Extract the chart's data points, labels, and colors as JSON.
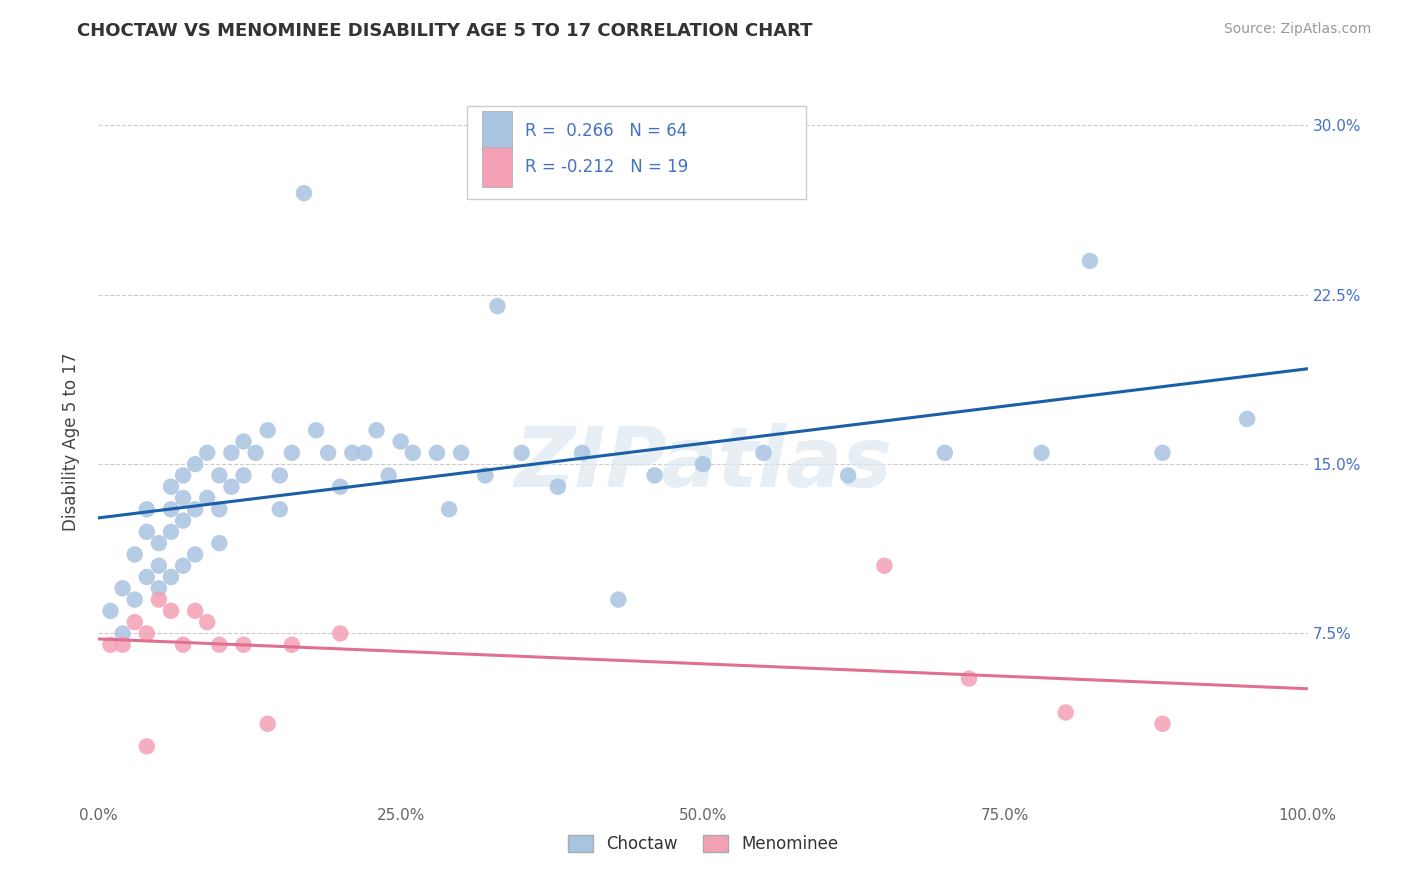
{
  "title": "CHOCTAW VS MENOMINEE DISABILITY AGE 5 TO 17 CORRELATION CHART",
  "source": "Source: ZipAtlas.com",
  "ylabel": "Disability Age 5 to 17",
  "legend_label1": "Choctaw",
  "legend_label2": "Menominee",
  "R1": 0.266,
  "N1": 64,
  "R2": -0.212,
  "N2": 19,
  "color1": "#a8c4e0",
  "color2": "#f4a0b5",
  "line_color1": "#1a5fa8",
  "line_color2": "#e07090",
  "xlim": [
    0.0,
    1.0
  ],
  "ylim": [
    0.0,
    0.32
  ],
  "xtick_positions": [
    0.0,
    0.25,
    0.5,
    0.75,
    1.0
  ],
  "xtick_labels": [
    "0.0%",
    "25.0%",
    "50.0%",
    "75.0%",
    "100.0%"
  ],
  "ytick_positions": [
    0.0,
    0.075,
    0.15,
    0.225,
    0.3
  ],
  "ytick_labels": [
    "",
    "7.5%",
    "15.0%",
    "22.5%",
    "30.0%"
  ],
  "choctaw_x": [
    0.01,
    0.02,
    0.02,
    0.03,
    0.03,
    0.04,
    0.04,
    0.04,
    0.05,
    0.05,
    0.05,
    0.06,
    0.06,
    0.06,
    0.06,
    0.07,
    0.07,
    0.07,
    0.07,
    0.08,
    0.08,
    0.08,
    0.09,
    0.09,
    0.1,
    0.1,
    0.1,
    0.11,
    0.11,
    0.12,
    0.12,
    0.13,
    0.14,
    0.15,
    0.15,
    0.16,
    0.17,
    0.18,
    0.19,
    0.2,
    0.21,
    0.22,
    0.23,
    0.24,
    0.25,
    0.26,
    0.28,
    0.29,
    0.3,
    0.32,
    0.33,
    0.35,
    0.38,
    0.4,
    0.43,
    0.46,
    0.5,
    0.55,
    0.62,
    0.7,
    0.78,
    0.82,
    0.88,
    0.95
  ],
  "choctaw_y": [
    0.085,
    0.095,
    0.075,
    0.11,
    0.09,
    0.13,
    0.12,
    0.1,
    0.115,
    0.105,
    0.095,
    0.14,
    0.13,
    0.12,
    0.1,
    0.145,
    0.135,
    0.125,
    0.105,
    0.15,
    0.13,
    0.11,
    0.155,
    0.135,
    0.145,
    0.13,
    0.115,
    0.155,
    0.14,
    0.16,
    0.145,
    0.155,
    0.165,
    0.145,
    0.13,
    0.155,
    0.27,
    0.165,
    0.155,
    0.14,
    0.155,
    0.155,
    0.165,
    0.145,
    0.16,
    0.155,
    0.155,
    0.13,
    0.155,
    0.145,
    0.22,
    0.155,
    0.14,
    0.155,
    0.09,
    0.145,
    0.15,
    0.155,
    0.145,
    0.155,
    0.155,
    0.24,
    0.155,
    0.17
  ],
  "menominee_x": [
    0.01,
    0.02,
    0.03,
    0.04,
    0.04,
    0.05,
    0.06,
    0.07,
    0.08,
    0.09,
    0.1,
    0.12,
    0.14,
    0.16,
    0.2,
    0.65,
    0.72,
    0.8,
    0.88
  ],
  "menominee_y": [
    0.07,
    0.07,
    0.08,
    0.025,
    0.075,
    0.09,
    0.085,
    0.07,
    0.085,
    0.08,
    0.07,
    0.07,
    0.035,
    0.07,
    0.075,
    0.105,
    0.055,
    0.04,
    0.035
  ],
  "watermark": "ZIPatlas",
  "background_color": "#ffffff",
  "grid_color": "#cccccc"
}
